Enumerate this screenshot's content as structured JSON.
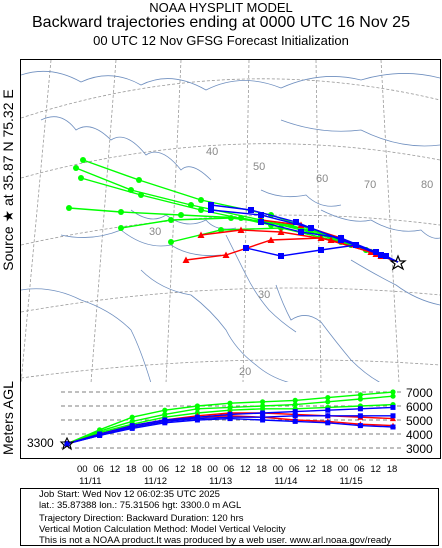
{
  "header": {
    "line1": "NOAA HYSPLIT MODEL",
    "line2": "Backward trajectories ending at 0000 UTC 16 Nov 25",
    "line3": "00 UTC 12 Nov    GFSG  Forecast Initialization"
  },
  "side_label": "Source ★ at  35.87 N   75.32 E",
  "meters_label": "Meters AGL",
  "map": {
    "grid_labels": [
      "40",
      "50",
      "60",
      "70",
      "80",
      "30",
      "30",
      "20"
    ],
    "source_marker": "star-icon",
    "series_colors": {
      "red": "#ff0000",
      "blue": "#0000ff",
      "green": "#00ff00"
    }
  },
  "altitude": {
    "start_height_label": "3300",
    "y_tick_labels": [
      "7000",
      "6000",
      "5000",
      "4000",
      "3000"
    ],
    "hour_ticks": [
      "18",
      "12",
      "06",
      "00",
      "18",
      "12",
      "06",
      "00",
      "18",
      "12",
      "06",
      "00",
      "18",
      "12",
      "06",
      "00",
      "18",
      "12",
      "06",
      "00"
    ],
    "date_ticks": [
      "11/15",
      "11/14",
      "11/13",
      "11/12",
      "11/11"
    ]
  },
  "chart_data": {
    "type": "line",
    "title": "",
    "xlabel": "",
    "ylabel": "Meters AGL",
    "ylim": [
      3000,
      7000
    ],
    "yticks": [
      3000,
      4000,
      5000,
      6000,
      7000
    ],
    "x_unit": "hours before 0000 UTC 16 Nov 25",
    "xlim": [
      0,
      120
    ],
    "series": [
      {
        "color": "#00ff00",
        "x": [
          0,
          12,
          24,
          36,
          48,
          60,
          72,
          84,
          96,
          108,
          120
        ],
        "y": [
          3300,
          4300,
          5200,
          5700,
          6000,
          6200,
          6300,
          6400,
          6600,
          6800,
          7000
        ]
      },
      {
        "color": "#00ff00",
        "x": [
          0,
          12,
          24,
          36,
          48,
          60,
          72,
          84,
          96,
          108,
          120
        ],
        "y": [
          3300,
          4200,
          4900,
          5400,
          5800,
          5900,
          6000,
          6100,
          6300,
          6500,
          6700
        ]
      },
      {
        "color": "#00ff00",
        "x": [
          0,
          12,
          24,
          36,
          48,
          60,
          72,
          84,
          96,
          108,
          120
        ],
        "y": [
          3300,
          4100,
          4700,
          5200,
          5500,
          5700,
          5800,
          5800,
          5900,
          6000,
          6100
        ]
      },
      {
        "color": "#ff0000",
        "x": [
          0,
          12,
          24,
          36,
          48,
          60,
          72,
          84,
          96,
          108,
          120
        ],
        "y": [
          3300,
          4000,
          4600,
          5000,
          5300,
          5500,
          5500,
          5400,
          5300,
          5200,
          5100
        ]
      },
      {
        "color": "#ff0000",
        "x": [
          0,
          12,
          24,
          36,
          48,
          60,
          72,
          84,
          96,
          108,
          120
        ],
        "y": [
          3300,
          4000,
          4500,
          4900,
          5200,
          5300,
          5200,
          5000,
          4900,
          4700,
          4600
        ]
      },
      {
        "color": "#0000ff",
        "x": [
          0,
          12,
          24,
          36,
          48,
          60,
          72,
          84,
          96,
          108,
          120
        ],
        "y": [
          3300,
          3900,
          4500,
          4900,
          5100,
          5200,
          5200,
          5300,
          5300,
          5300,
          5300
        ]
      },
      {
        "color": "#0000ff",
        "x": [
          0,
          12,
          24,
          36,
          48,
          60,
          72,
          84,
          96,
          108,
          120
        ],
        "y": [
          3300,
          3900,
          4400,
          4800,
          5000,
          5100,
          5000,
          4900,
          4800,
          4600,
          4500
        ]
      },
      {
        "color": "#0000ff",
        "x": [
          0,
          12,
          24,
          36,
          48,
          60,
          72,
          84,
          96,
          108,
          120
        ],
        "y": [
          3300,
          4000,
          4600,
          5000,
          5200,
          5400,
          5500,
          5600,
          5700,
          5800,
          5900
        ]
      }
    ]
  },
  "info": {
    "line1": "Job Start: Wed Nov 12 06:02:35 UTC 2025",
    "line2": "lat.: 35.87388   lon.: 75.31506   hgt: 3300.0 m AGL",
    "line3": "Trajectory Direction: Backward          Duration: 120 hrs",
    "line4": "Vertical Motion Calculation Method: Model Vertical Velocity",
    "line5": "This is not a NOAA product.It was produced by a web user. www.arl.noaa.gov/ready"
  }
}
